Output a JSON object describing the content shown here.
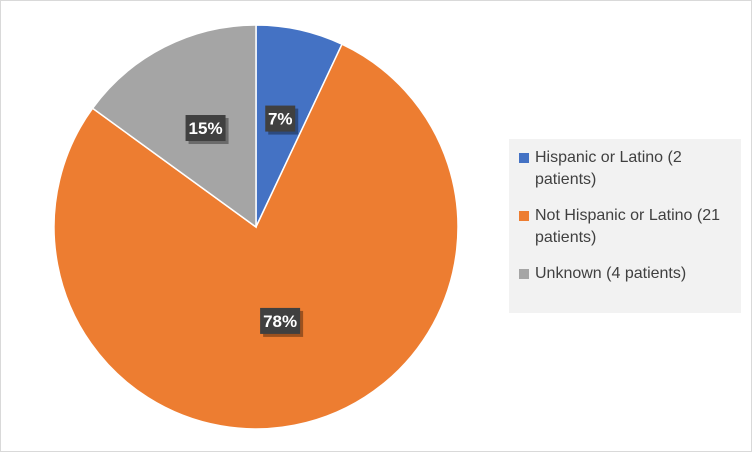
{
  "chart_data": {
    "type": "pie",
    "title": "",
    "slices": [
      {
        "name": "Hispanic or Latino (2 patients)",
        "value": 7,
        "label": "7%",
        "color": "#4472c4"
      },
      {
        "name": "Not Hispanic or Latino (21 patients)",
        "value": 78,
        "label": "78%",
        "color": "#ed7d31"
      },
      {
        "name": "Unknown (4 patients)",
        "value": 15,
        "label": "15%",
        "color": "#a5a5a5"
      }
    ],
    "legend_position": "right"
  }
}
